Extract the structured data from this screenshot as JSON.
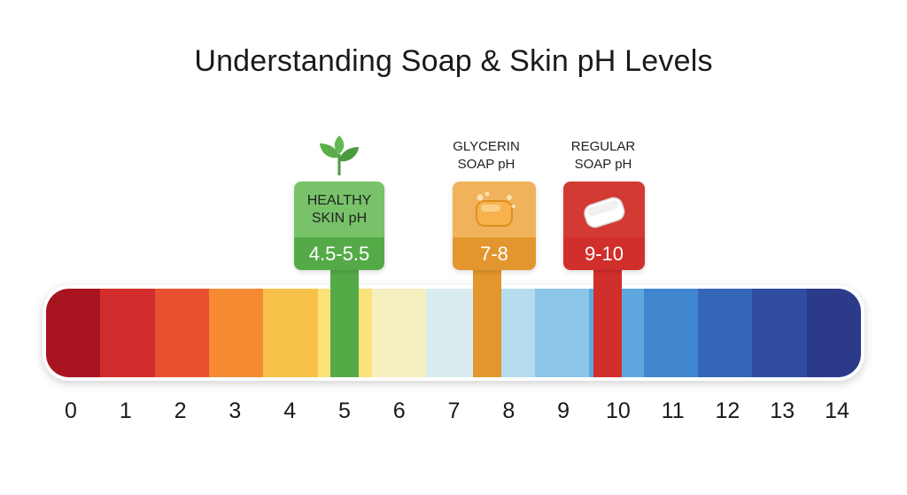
{
  "title": "Understanding Soap & Skin pH Levels",
  "scale": {
    "ticks": [
      "0",
      "1",
      "2",
      "3",
      "4",
      "5",
      "6",
      "7",
      "8",
      "9",
      "10",
      "11",
      "12",
      "13",
      "14"
    ],
    "colors": [
      "#a8141f",
      "#d12d2c",
      "#e8512f",
      "#f58a33",
      "#f8c14a",
      "#fbe27a",
      "#f6efc0",
      "#d9ecef",
      "#b6dcee",
      "#8cc6ea",
      "#5fa8df",
      "#3f86cf",
      "#3466b7",
      "#2f4ca0",
      "#2c3a8a"
    ]
  },
  "markers": [
    {
      "label_lines": [
        "HEALTHY",
        "SKIN pH"
      ],
      "value": "4.5-5.5",
      "ph": 5.0,
      "color": "#55aa48",
      "top_color": "#78c36a",
      "icon": "leaf-icon"
    },
    {
      "label_lines": [
        "GLYCERIN",
        "SOAP pH"
      ],
      "value": "7-8",
      "ph": 7.6,
      "color": "#e3962e",
      "top_color": "#f0b35c",
      "icon": "glycerin-soap-icon"
    },
    {
      "label_lines": [
        "REGULAR",
        "SOAP pH"
      ],
      "value": "9-10",
      "ph": 9.8,
      "color": "#d12f2b",
      "top_color": "#d33a34",
      "icon": "soap-bar-icon"
    }
  ]
}
